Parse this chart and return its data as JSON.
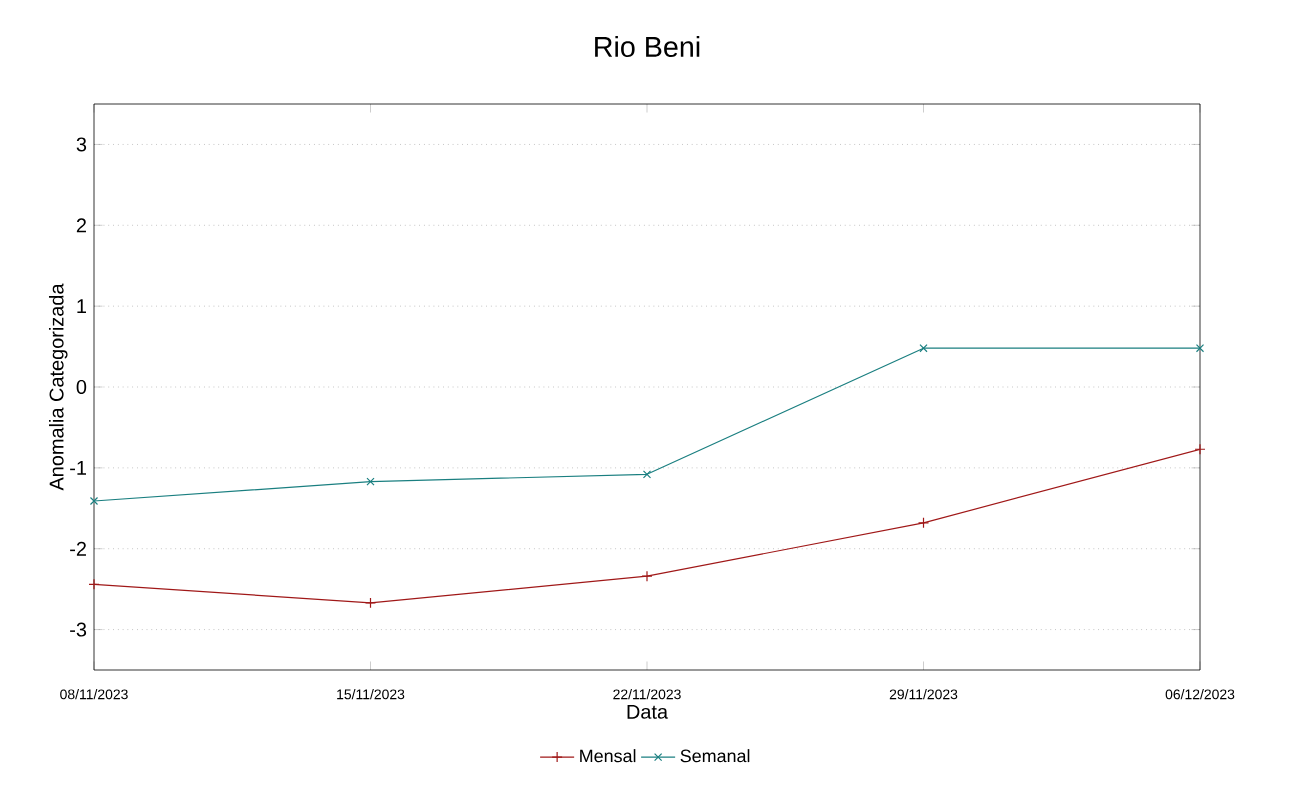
{
  "chart_data": {
    "type": "line",
    "title": "Rio Beni",
    "xlabel": "Data",
    "ylabel": "Anomalia Categorizada",
    "x": [
      "2023-11-08",
      "2023-11-15",
      "2023-11-22",
      "2023-11-29",
      "2023-12-06"
    ],
    "series": [
      {
        "name": "Mensal",
        "color": "#a01818",
        "marker": "plus",
        "values": [
          -2.44,
          -2.67,
          -2.34,
          -1.68,
          -0.77
        ]
      },
      {
        "name": "Semanal",
        "color": "#1a7f80",
        "marker": "cross",
        "values": [
          -1.41,
          -1.17,
          -1.08,
          0.48,
          0.48
        ]
      }
    ],
    "xlim": [
      "2023-11-08",
      "2023-12-06"
    ],
    "xticks": [
      {
        "value": "2023-11-08",
        "label": "08/11/2023"
      },
      {
        "value": "2023-11-15",
        "label": "15/11/2023"
      },
      {
        "value": "2023-11-22",
        "label": "22/11/2023"
      },
      {
        "value": "2023-11-29",
        "label": "29/11/2023"
      },
      {
        "value": "2023-12-06",
        "label": "06/12/2023"
      }
    ],
    "ylim": [
      -3.5,
      3.5
    ],
    "yticks": [
      -3,
      -2,
      -1,
      0,
      1,
      2,
      3
    ],
    "grid": "y",
    "legend": "bottom",
    "line_style": "solid"
  }
}
